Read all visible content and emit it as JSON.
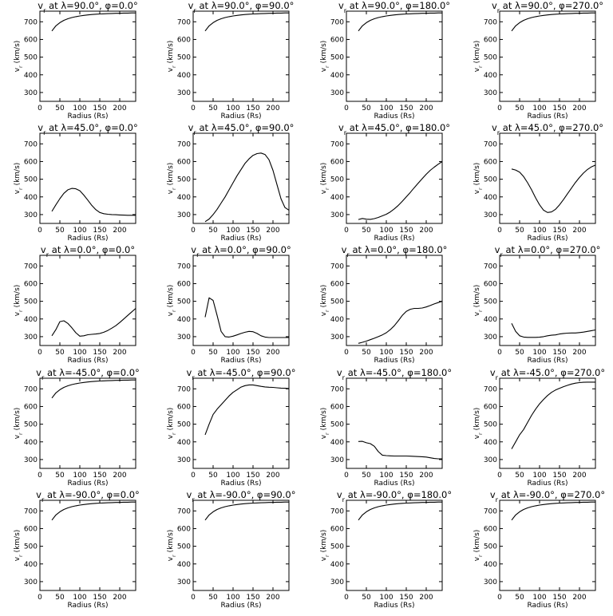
{
  "chart_data": [
    {
      "type": "line",
      "title": "v$_r$ at $\\lambda$=90.0°, $\\phi$=0.0°",
      "xlabel": "Radius (Rs)",
      "ylabel": "v$_r$ (km/s)",
      "xlim": [
        0,
        240
      ],
      "ylim": [
        250,
        760
      ],
      "x": [
        30,
        40,
        50,
        60,
        70,
        80,
        90,
        100,
        110,
        120,
        130,
        140,
        150,
        160,
        170,
        180,
        190,
        200,
        210,
        220,
        230,
        240
      ],
      "y": [
        648,
        677,
        695,
        708,
        717,
        724,
        729,
        733,
        736,
        739,
        741,
        743,
        744,
        745,
        746,
        747,
        748,
        748,
        749,
        749,
        750,
        750
      ]
    },
    {
      "type": "line",
      "title": "v$_r$ at $\\lambda$=90.0°, $\\phi$=90.0°",
      "xlabel": "Radius (Rs)",
      "ylabel": "v$_r$ (km/s)",
      "xlim": [
        0,
        240
      ],
      "ylim": [
        250,
        760
      ],
      "x": [
        30,
        40,
        50,
        60,
        70,
        80,
        90,
        100,
        110,
        120,
        130,
        140,
        150,
        160,
        170,
        180,
        190,
        200,
        210,
        220,
        230,
        240
      ],
      "y": [
        648,
        677,
        695,
        708,
        717,
        724,
        729,
        733,
        736,
        739,
        741,
        743,
        744,
        745,
        746,
        747,
        748,
        748,
        749,
        749,
        750,
        750
      ]
    },
    {
      "type": "line",
      "title": "v$_r$ at $\\lambda$=90.0°, $\\phi$=180.0°",
      "xlabel": "Radius (Rs)",
      "ylabel": "v$_r$ (km/s)",
      "xlim": [
        0,
        240
      ],
      "ylim": [
        250,
        760
      ],
      "x": [
        30,
        40,
        50,
        60,
        70,
        80,
        90,
        100,
        110,
        120,
        130,
        140,
        150,
        160,
        170,
        180,
        190,
        200,
        210,
        220,
        230,
        240
      ],
      "y": [
        648,
        677,
        695,
        708,
        717,
        724,
        729,
        733,
        736,
        739,
        741,
        743,
        744,
        745,
        746,
        747,
        748,
        748,
        749,
        749,
        750,
        750
      ]
    },
    {
      "type": "line",
      "title": "v$_r$ at $\\lambda$=90.0°, $\\phi$=270.0°",
      "xlabel": "Radius (Rs)",
      "ylabel": "v$_r$ (km/s)",
      "xlim": [
        0,
        240
      ],
      "ylim": [
        250,
        760
      ],
      "x": [
        30,
        40,
        50,
        60,
        70,
        80,
        90,
        100,
        110,
        120,
        130,
        140,
        150,
        160,
        170,
        180,
        190,
        200,
        210,
        220,
        230,
        240
      ],
      "y": [
        648,
        677,
        695,
        708,
        717,
        724,
        729,
        733,
        736,
        739,
        741,
        743,
        744,
        745,
        746,
        747,
        748,
        748,
        749,
        749,
        750,
        750
      ]
    },
    {
      "type": "line",
      "title": "v$_r$ at $\\lambda$=45.0°, $\\phi$=0.0°",
      "xlabel": "Radius (Rs)",
      "ylabel": "v$_r$ (km/s)",
      "xlim": [
        0,
        240
      ],
      "ylim": [
        250,
        760
      ],
      "x": [
        30,
        40,
        50,
        60,
        70,
        80,
        90,
        100,
        110,
        120,
        130,
        140,
        150,
        160,
        170,
        180,
        190,
        200,
        210,
        220,
        230,
        240
      ],
      "y": [
        318,
        355,
        390,
        420,
        440,
        448,
        446,
        435,
        410,
        382,
        352,
        328,
        312,
        305,
        302,
        300,
        299,
        298,
        297,
        296,
        296,
        296
      ]
    },
    {
      "type": "line",
      "title": "v$_r$ at $\\lambda$=45.0°, $\\phi$=90.0°",
      "xlabel": "Radius (Rs)",
      "ylabel": "v$_r$ (km/s)",
      "xlim": [
        0,
        240
      ],
      "ylim": [
        250,
        760
      ],
      "x": [
        30,
        40,
        50,
        60,
        70,
        80,
        90,
        100,
        110,
        120,
        130,
        140,
        150,
        160,
        170,
        180,
        190,
        200,
        210,
        220,
        230,
        240
      ],
      "y": [
        260,
        275,
        300,
        330,
        365,
        400,
        440,
        480,
        520,
        555,
        590,
        615,
        635,
        645,
        648,
        640,
        610,
        550,
        470,
        390,
        340,
        325
      ]
    },
    {
      "type": "line",
      "title": "v$_r$ at $\\lambda$=45.0°, $\\phi$=180.0°",
      "xlabel": "Radius (Rs)",
      "ylabel": "v$_r$ (km/s)",
      "xlim": [
        0,
        240
      ],
      "ylim": [
        250,
        760
      ],
      "x": [
        30,
        40,
        50,
        60,
        70,
        80,
        90,
        100,
        110,
        120,
        130,
        140,
        150,
        160,
        170,
        180,
        190,
        200,
        210,
        220,
        230,
        240
      ],
      "y": [
        272,
        278,
        274,
        273,
        277,
        284,
        293,
        302,
        315,
        332,
        352,
        375,
        400,
        425,
        452,
        478,
        503,
        528,
        550,
        568,
        585,
        600
      ]
    },
    {
      "type": "line",
      "title": "v$_r$ at $\\lambda$=45.0°, $\\phi$=270.0°",
      "xlabel": "Radius (Rs)",
      "ylabel": "v$_r$ (km/s)",
      "xlim": [
        0,
        240
      ],
      "ylim": [
        250,
        760
      ],
      "x": [
        30,
        40,
        50,
        60,
        70,
        80,
        90,
        100,
        110,
        120,
        130,
        140,
        150,
        160,
        170,
        180,
        190,
        200,
        210,
        220,
        230,
        240
      ],
      "y": [
        558,
        552,
        540,
        515,
        480,
        440,
        395,
        355,
        325,
        312,
        315,
        330,
        355,
        385,
        418,
        450,
        482,
        510,
        535,
        555,
        570,
        580
      ]
    },
    {
      "type": "line",
      "title": "v$_r$ at $\\lambda$=0.0°, $\\phi$=0.0°",
      "xlabel": "Radius (Rs)",
      "ylabel": "v$_r$ (km/s)",
      "xlim": [
        0,
        240
      ],
      "ylim": [
        250,
        760
      ],
      "x": [
        30,
        40,
        50,
        60,
        70,
        80,
        90,
        100,
        110,
        120,
        130,
        140,
        150,
        160,
        170,
        180,
        190,
        200,
        210,
        220,
        230,
        240
      ],
      "y": [
        305,
        340,
        385,
        390,
        375,
        350,
        322,
        303,
        305,
        311,
        313,
        315,
        318,
        325,
        335,
        348,
        362,
        380,
        400,
        420,
        440,
        460
      ]
    },
    {
      "type": "line",
      "title": "v$_r$ at $\\lambda$=0.0°, $\\phi$=90.0°",
      "xlabel": "Radius (Rs)",
      "ylabel": "v$_r$ (km/s)",
      "xlim": [
        0,
        240
      ],
      "ylim": [
        250,
        760
      ],
      "x": [
        30,
        40,
        50,
        60,
        70,
        80,
        90,
        100,
        110,
        120,
        130,
        140,
        150,
        160,
        170,
        180,
        190,
        200,
        210,
        220,
        230,
        240
      ],
      "y": [
        410,
        520,
        505,
        420,
        330,
        300,
        298,
        303,
        310,
        318,
        325,
        330,
        328,
        318,
        305,
        298,
        295,
        295,
        295,
        295,
        295,
        295
      ]
    },
    {
      "type": "line",
      "title": "v$_r$ at $\\lambda$=0.0°, $\\phi$=180.0°",
      "xlabel": "Radius (Rs)",
      "ylabel": "v$_r$ (km/s)",
      "xlim": [
        0,
        240
      ],
      "ylim": [
        250,
        760
      ],
      "x": [
        30,
        40,
        50,
        60,
        70,
        80,
        90,
        100,
        110,
        120,
        130,
        140,
        150,
        160,
        170,
        180,
        190,
        200,
        210,
        220,
        230,
        240
      ],
      "y": [
        262,
        268,
        275,
        283,
        291,
        300,
        310,
        322,
        340,
        362,
        390,
        420,
        443,
        455,
        460,
        460,
        462,
        468,
        476,
        485,
        493,
        500
      ]
    },
    {
      "type": "line",
      "title": "v$_r$ at $\\lambda$=0.0°, $\\phi$=270.0°",
      "xlabel": "Radius (Rs)",
      "ylabel": "v$_r$ (km/s)",
      "xlim": [
        0,
        240
      ],
      "ylim": [
        250,
        760
      ],
      "x": [
        30,
        40,
        50,
        60,
        70,
        80,
        90,
        100,
        110,
        120,
        130,
        140,
        150,
        160,
        170,
        180,
        190,
        200,
        210,
        220,
        230,
        240
      ],
      "y": [
        375,
        330,
        305,
        298,
        296,
        296,
        296,
        297,
        300,
        305,
        308,
        310,
        315,
        318,
        320,
        321,
        321,
        323,
        326,
        330,
        334,
        338
      ]
    },
    {
      "type": "line",
      "title": "v$_r$ at $\\lambda$=-45.0°, $\\phi$=0.0°",
      "xlabel": "Radius (Rs)",
      "ylabel": "v$_r$ (km/s)",
      "xlim": [
        0,
        240
      ],
      "ylim": [
        250,
        760
      ],
      "x": [
        30,
        40,
        50,
        60,
        70,
        80,
        90,
        100,
        110,
        120,
        130,
        140,
        150,
        160,
        170,
        180,
        190,
        200,
        210,
        220,
        230,
        240
      ],
      "y": [
        648,
        677,
        695,
        708,
        717,
        724,
        729,
        733,
        736,
        739,
        741,
        743,
        744,
        745,
        746,
        747,
        748,
        748,
        749,
        749,
        750,
        750
      ]
    },
    {
      "type": "line",
      "title": "v$_r$ at $\\lambda$=-45.0°, $\\phi$=90.0°",
      "xlabel": "Radius (Rs)",
      "ylabel": "v$_r$ (km/s)",
      "xlim": [
        0,
        240
      ],
      "ylim": [
        250,
        760
      ],
      "x": [
        30,
        40,
        50,
        60,
        70,
        80,
        90,
        100,
        110,
        120,
        130,
        140,
        150,
        160,
        170,
        180,
        190,
        200,
        210,
        220,
        230,
        240
      ],
      "y": [
        440,
        500,
        555,
        585,
        610,
        635,
        660,
        680,
        695,
        710,
        718,
        722,
        722,
        718,
        714,
        711,
        709,
        708,
        706,
        704,
        703,
        702
      ]
    },
    {
      "type": "line",
      "title": "v$_r$ at $\\lambda$=-45.0°, $\\phi$=180.0°",
      "xlabel": "Radius (Rs)",
      "ylabel": "v$_r$ (km/s)",
      "xlim": [
        0,
        240
      ],
      "ylim": [
        250,
        760
      ],
      "x": [
        30,
        40,
        50,
        60,
        70,
        80,
        90,
        100,
        110,
        120,
        130,
        140,
        150,
        160,
        170,
        180,
        190,
        200,
        210,
        220,
        230,
        240
      ],
      "y": [
        402,
        403,
        395,
        390,
        375,
        345,
        325,
        322,
        321,
        320,
        320,
        320,
        320,
        319,
        318,
        317,
        316,
        314,
        310,
        306,
        304,
        304
      ]
    },
    {
      "type": "line",
      "title": "v$_r$ at $\\lambda$=-45.0°, $\\phi$=270.0°",
      "xlabel": "Radius (Rs)",
      "ylabel": "v$_r$ (km/s)",
      "xlim": [
        0,
        240
      ],
      "ylim": [
        250,
        760
      ],
      "x": [
        30,
        40,
        50,
        60,
        70,
        80,
        90,
        100,
        110,
        120,
        130,
        140,
        150,
        160,
        170,
        180,
        190,
        200,
        210,
        220,
        230,
        240
      ],
      "y": [
        360,
        400,
        440,
        470,
        510,
        550,
        585,
        615,
        640,
        662,
        680,
        693,
        703,
        712,
        720,
        727,
        732,
        735,
        737,
        738,
        738,
        738
      ]
    },
    {
      "type": "line",
      "title": "v$_r$ at $\\lambda$=-90.0°, $\\phi$=0.0°",
      "xlabel": "Radius (Rs)",
      "ylabel": "v$_r$ (km/s)",
      "xlim": [
        0,
        240
      ],
      "ylim": [
        250,
        760
      ],
      "x": [
        30,
        40,
        50,
        60,
        70,
        80,
        90,
        100,
        110,
        120,
        130,
        140,
        150,
        160,
        170,
        180,
        190,
        200,
        210,
        220,
        230,
        240
      ],
      "y": [
        648,
        677,
        695,
        708,
        717,
        724,
        729,
        733,
        736,
        739,
        741,
        743,
        744,
        745,
        746,
        747,
        748,
        748,
        749,
        749,
        750,
        750
      ]
    },
    {
      "type": "line",
      "title": "v$_r$ at $\\lambda$=-90.0°, $\\phi$=90.0°",
      "xlabel": "Radius (Rs)",
      "ylabel": "v$_r$ (km/s)",
      "xlim": [
        0,
        240
      ],
      "ylim": [
        250,
        760
      ],
      "x": [
        30,
        40,
        50,
        60,
        70,
        80,
        90,
        100,
        110,
        120,
        130,
        140,
        150,
        160,
        170,
        180,
        190,
        200,
        210,
        220,
        230,
        240
      ],
      "y": [
        648,
        677,
        695,
        708,
        717,
        724,
        729,
        733,
        736,
        739,
        741,
        743,
        744,
        745,
        746,
        747,
        748,
        748,
        749,
        749,
        750,
        750
      ]
    },
    {
      "type": "line",
      "title": "v$_r$ at $\\lambda$=-90.0°, $\\phi$=180.0°",
      "xlabel": "Radius (Rs)",
      "ylabel": "v$_r$ (km/s)",
      "xlim": [
        0,
        240
      ],
      "ylim": [
        250,
        760
      ],
      "x": [
        30,
        40,
        50,
        60,
        70,
        80,
        90,
        100,
        110,
        120,
        130,
        140,
        150,
        160,
        170,
        180,
        190,
        200,
        210,
        220,
        230,
        240
      ],
      "y": [
        648,
        677,
        695,
        708,
        717,
        724,
        729,
        733,
        736,
        739,
        741,
        743,
        744,
        745,
        746,
        747,
        748,
        748,
        749,
        749,
        750,
        750
      ]
    },
    {
      "type": "line",
      "title": "v$_r$ at $\\lambda$=-90.0°, $\\phi$=270.0°",
      "xlabel": "Radius (Rs)",
      "ylabel": "v$_r$ (km/s)",
      "xlim": [
        0,
        240
      ],
      "ylim": [
        250,
        760
      ],
      "x": [
        30,
        40,
        50,
        60,
        70,
        80,
        90,
        100,
        110,
        120,
        130,
        140,
        150,
        160,
        170,
        180,
        190,
        200,
        210,
        220,
        230,
        240
      ],
      "y": [
        648,
        677,
        695,
        708,
        717,
        724,
        729,
        733,
        736,
        739,
        741,
        743,
        744,
        745,
        746,
        747,
        748,
        748,
        749,
        749,
        750,
        750
      ]
    }
  ],
  "axes": {
    "xticks": [
      0,
      50,
      100,
      150,
      200
    ],
    "yticks": [
      300,
      400,
      500,
      600,
      700
    ]
  },
  "style": {
    "line_color": "#000000",
    "background": "#ffffff"
  }
}
